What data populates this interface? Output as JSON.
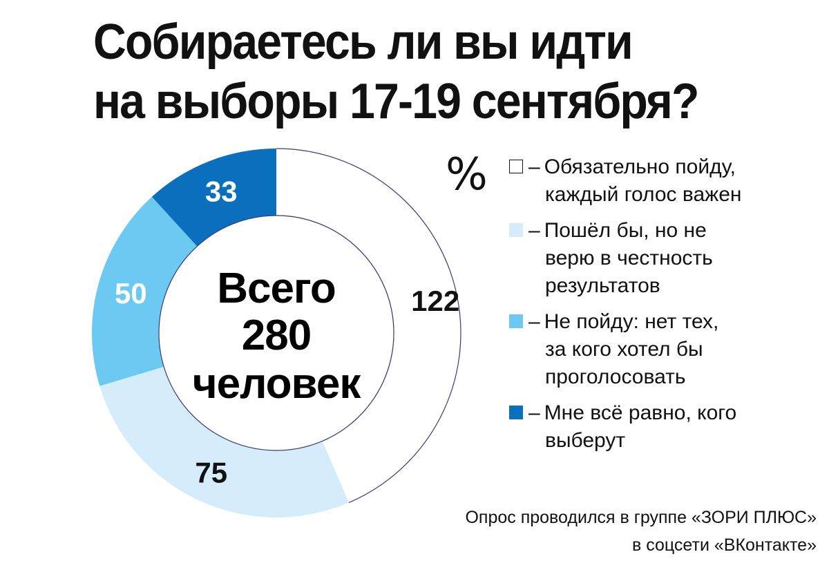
{
  "title_lines": [
    "Собираетесь ли вы идти",
    "на выборы 17-19 сентября?"
  ],
  "percent_sign": "%",
  "center_label": [
    "Всего",
    "280",
    "человек"
  ],
  "legend": [
    {
      "lines": [
        "Обязательно пойду,",
        "каждый голос важен"
      ],
      "color": "#ffffff",
      "border": "#111111"
    },
    {
      "lines": [
        "Пошёл бы, но не",
        "верю в честность",
        "результатов"
      ],
      "color": "#d5ecfa",
      "border": "#d5ecfa"
    },
    {
      "lines": [
        "Не пойду: нет тех,",
        "за кого хотел бы",
        "проголосовать"
      ],
      "color": "#6ccaf2",
      "border": "#6ccaf2"
    },
    {
      "lines": [
        "Мне всё равно, кого",
        "выберут"
      ],
      "color": "#0a6fbd",
      "border": "#0a6fbd"
    }
  ],
  "legend_dash": "–",
  "source_lines": [
    "Опрос проводился в группе «ЗОРИ ПЛЮС»",
    "в соцсети «ВКонтакте»"
  ],
  "chart_data": {
    "type": "pie",
    "donut": true,
    "total": 280,
    "categories": [
      "Обязательно пойду, каждый голос важен",
      "Пошёл бы, но не верю в честность результатов",
      "Не пойду: нет тех, за кого хотел бы проголосовать",
      "Мне всё равно, кого выберут"
    ],
    "values": [
      122,
      75,
      50,
      33
    ],
    "labels": [
      "122",
      "75",
      "50",
      "33"
    ],
    "colors": [
      "#ffffff",
      "#d5ecfa",
      "#6ccaf2",
      "#0a6fbd"
    ],
    "label_colors": [
      "#111111",
      "#111111",
      "#ffffff",
      "#ffffff"
    ],
    "outline_color": "#3a3a7a",
    "start": "top",
    "direction": "clockwise"
  }
}
